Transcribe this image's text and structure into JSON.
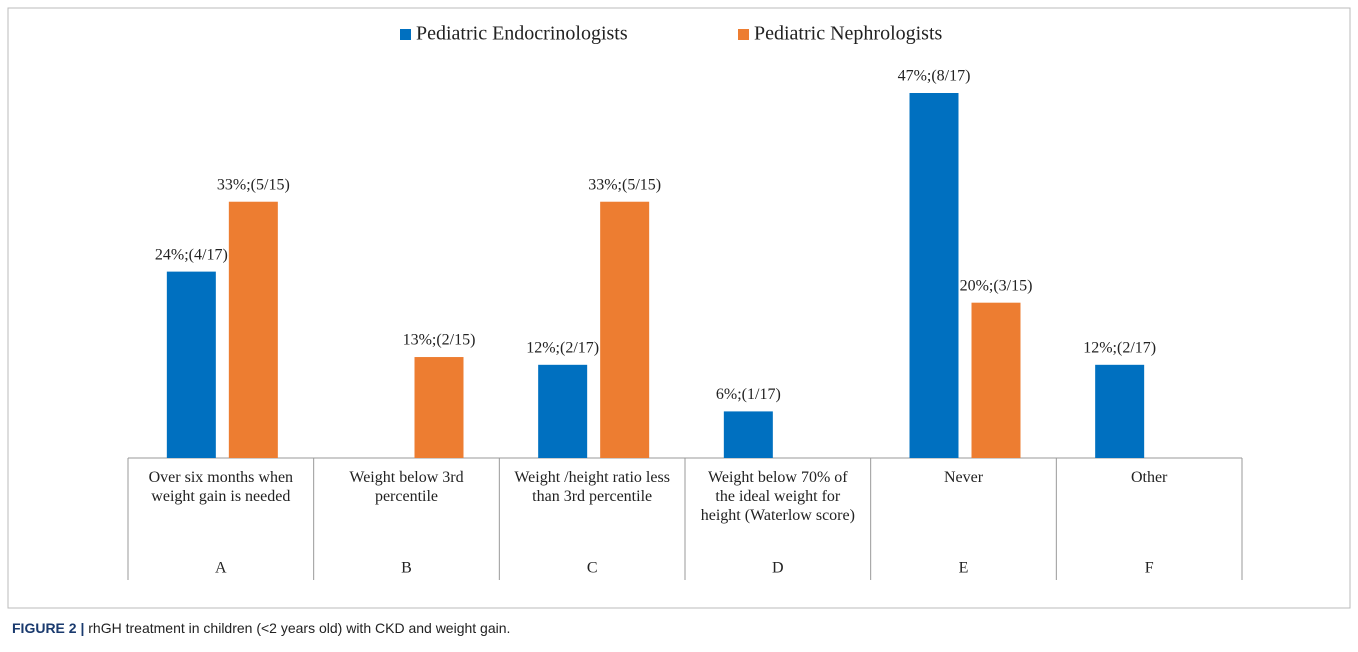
{
  "chart_data": {
    "type": "bar",
    "categories": [
      "A",
      "B",
      "C",
      "D",
      "E",
      "F"
    ],
    "category_descriptions": [
      "Over six months when weight gain is needed",
      "Weight below 3rd percentile",
      "Weight /height ratio less than 3rd percentile",
      "Weight below 70% of the ideal weight for height (Waterlow score)",
      "Never",
      "Other"
    ],
    "series": [
      {
        "name": "Pediatric Endocrinologists",
        "color": "#0070c0",
        "values": [
          24,
          null,
          12,
          6,
          47,
          12
        ],
        "value_labels": [
          "24%;(4/17)",
          null,
          "12%;(2/17)",
          "6%;(1/17)",
          "47%;(8/17)",
          "12%;(2/17)"
        ]
      },
      {
        "name": "Pediatric Nephrologists",
        "color": "#ed7d31",
        "values": [
          33,
          13,
          33,
          null,
          20,
          null
        ],
        "value_labels": [
          "33%;(5/15)",
          "13%;(2/15)",
          "33%;(5/15)",
          null,
          "20%;(3/15)",
          null
        ]
      }
    ],
    "legend": "top"
  },
  "caption_label": "FIGURE 2 |",
  "caption": "rhGH treatment in children (<2 years old) with CKD and weight gain."
}
